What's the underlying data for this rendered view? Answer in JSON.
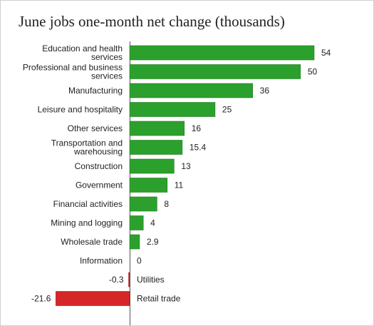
{
  "chart_data": {
    "type": "bar",
    "orientation": "horizontal",
    "title": "June jobs one-month net change (thousands)",
    "categories": [
      "Education and health services",
      "Professional and business services",
      "Manufacturing",
      "Leisure and hospitality",
      "Other services",
      "Transportation and warehousing",
      "Construction",
      "Government",
      "Financial activities",
      "Mining and logging",
      "Wholesale trade",
      "Information",
      "Utilities",
      "Retail trade"
    ],
    "category_lines": [
      [
        "Education and health",
        "services"
      ],
      [
        "Professional and business",
        "services"
      ],
      [
        "Manufacturing"
      ],
      [
        "Leisure and hospitality"
      ],
      [
        "Other services"
      ],
      [
        "Transportation and",
        "warehousing"
      ],
      [
        "Construction"
      ],
      [
        "Government"
      ],
      [
        "Financial activities"
      ],
      [
        "Mining and logging"
      ],
      [
        "Wholesale trade"
      ],
      [
        "Information"
      ],
      [
        "Utilities"
      ],
      [
        "Retail trade"
      ]
    ],
    "values": [
      54,
      50,
      36,
      25,
      16,
      15.4,
      13,
      11,
      8,
      4,
      2.9,
      0,
      -0.3,
      -21.6
    ],
    "value_labels": [
      "54",
      "50",
      "36",
      "25",
      "16",
      "15.4",
      "13",
      "11",
      "8",
      "4",
      "2.9",
      "0",
      "-0.3",
      "-21.6"
    ],
    "positive_color": "#2ca02c",
    "negative_color": "#d62728",
    "grid": false,
    "legend": "none"
  }
}
